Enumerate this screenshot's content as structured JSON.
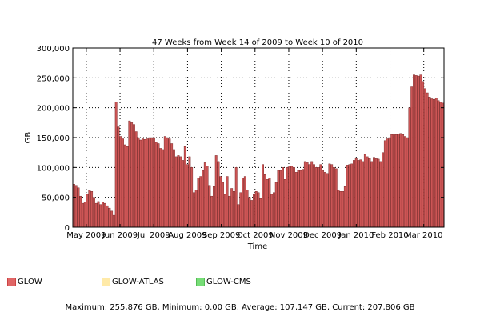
{
  "chart_data": {
    "type": "bar",
    "title": "47 Weeks from Week 14 of 2009 to Week 10 of 2010",
    "xlabel": "Time",
    "ylabel": "GB",
    "ylim": [
      0,
      300000
    ],
    "yticks": [
      "0",
      "50,000",
      "100,000",
      "150,000",
      "200,000",
      "250,000",
      "300,000"
    ],
    "xtick_labels": [
      "May 2009",
      "Jun 2009",
      "Jul 2009",
      "Aug 2009",
      "Sep 2009",
      "Oct 2009",
      "Nov 2009",
      "Dec 2009",
      "Jan 2010",
      "Feb 2010",
      "Mar 2010"
    ],
    "grid": true,
    "bar_color": "#cc5555",
    "series": [
      {
        "name": "GLOW",
        "color": "#e06666",
        "values": [
          72000,
          70000,
          66000,
          52000,
          40000,
          42000,
          55000,
          62000,
          60000,
          50000,
          40000,
          43000,
          38000,
          42000,
          40000,
          36000,
          32000,
          27000,
          20000,
          210000,
          168000,
          152000,
          148000,
          138000,
          135000,
          178000,
          175000,
          172000,
          160000,
          150000,
          146000,
          148000,
          147000,
          148000,
          150000,
          150000,
          150000,
          142000,
          140000,
          132000,
          130000,
          152000,
          150000,
          148000,
          140000,
          130000,
          118000,
          120000,
          118000,
          112000,
          135000,
          105000,
          118000,
          100000,
          58000,
          62000,
          82000,
          85000,
          95000,
          108000,
          102000,
          70000,
          52000,
          68000,
          120000,
          110000,
          85000,
          75000,
          55000,
          85000,
          52000,
          65000,
          60000,
          100000,
          38000,
          58000,
          82000,
          85000,
          62000,
          50000,
          45000,
          55000,
          60000,
          58000,
          48000,
          105000,
          88000,
          80000,
          82000,
          55000,
          58000,
          75000,
          95000,
          95000,
          100000,
          80000,
          100000,
          102000,
          102000,
          100000,
          92000,
          95000,
          95000,
          97000,
          110000,
          108000,
          105000,
          110000,
          105000,
          100000,
          100000,
          105000,
          95000,
          92000,
          90000,
          106000,
          105000,
          100000,
          98000,
          62000,
          60000,
          60000,
          68000,
          104000,
          105000,
          106000,
          112000,
          115000,
          112000,
          113000,
          110000,
          122000,
          118000,
          115000,
          110000,
          117000,
          115000,
          114000,
          110000,
          125000,
          145000,
          148000,
          150000,
          155000,
          156000,
          155000,
          156000,
          157000,
          155000,
          152000,
          150000,
          200000,
          235000,
          255000,
          254000,
          253000,
          255000,
          244000,
          232000,
          225000,
          218000,
          215000,
          214000,
          216000,
          212000,
          210000,
          207806
        ]
      },
      {
        "name": "GLOW-ATLAS",
        "color": "#ffeaa8",
        "values": []
      },
      {
        "name": "GLOW-CMS",
        "color": "#77dd77",
        "values": []
      }
    ]
  },
  "summary": {
    "maximum_label": "Maximum:",
    "maximum": "255,876 GB",
    "minimum_label": "Minimum:",
    "minimum": "0.00 GB",
    "average_label": "Average:",
    "average": "107,147 GB",
    "current_label": "Current:",
    "current": "207,806 GB"
  }
}
